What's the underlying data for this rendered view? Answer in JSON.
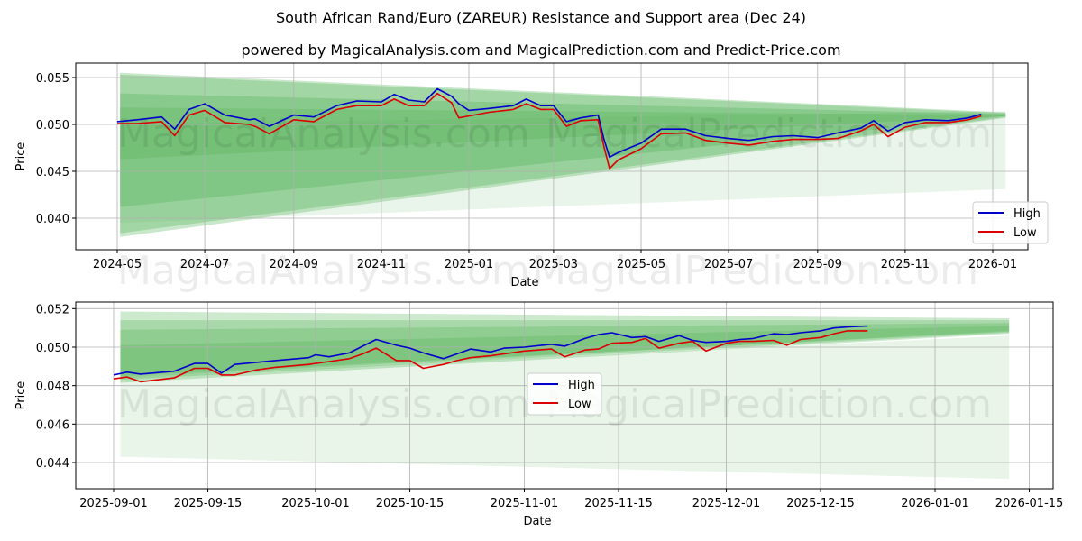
{
  "header": {
    "title": "South African Rand/Euro (ZAREUR) Resistance and Support area (Dec 24)",
    "subtitle": "powered by MagicalAnalysis.com and MagicalPrediction.com and Predict-Price.com"
  },
  "watermarks": [
    "MagicalAnalysis.com",
    "MagicalPrediction.com"
  ],
  "colors": {
    "high": "#0000cc",
    "low": "#dd0000",
    "band": "#4caf50"
  },
  "chart_data": [
    {
      "type": "line",
      "title": "South African Rand/Euro (ZAREUR) Resistance and Support area (Dec 24)",
      "xlabel": "Date",
      "ylabel": "Price",
      "ylim": [
        0.0366,
        0.0565
      ],
      "yticks": [
        "0.040",
        "0.045",
        "0.050",
        "0.055"
      ],
      "xticks": [
        "2024-05",
        "2024-07",
        "2024-09",
        "2024-11",
        "2025-01",
        "2025-03",
        "2025-05",
        "2025-07",
        "2025-09",
        "2025-11",
        "2026-01"
      ],
      "grid": true,
      "legend": {
        "position": "lower right",
        "entries": [
          "High",
          "Low"
        ]
      },
      "x": [
        "2024-05-01",
        "2024-05-15",
        "2024-06-01",
        "2024-06-10",
        "2024-06-20",
        "2024-07-01",
        "2024-07-15",
        "2024-08-01",
        "2024-08-05",
        "2024-08-15",
        "2024-09-01",
        "2024-09-15",
        "2024-10-01",
        "2024-10-15",
        "2024-11-01",
        "2024-11-10",
        "2024-11-20",
        "2024-12-01",
        "2024-12-10",
        "2024-12-20",
        "2024-12-25",
        "2025-01-01",
        "2025-01-15",
        "2025-02-01",
        "2025-02-10",
        "2025-02-20",
        "2025-03-01",
        "2025-03-10",
        "2025-03-20",
        "2025-04-01",
        "2025-04-05",
        "2025-04-09",
        "2025-04-15",
        "2025-05-01",
        "2025-05-15",
        "2025-06-01",
        "2025-06-15",
        "2025-07-01",
        "2025-07-15",
        "2025-08-01",
        "2025-08-15",
        "2025-09-01",
        "2025-09-15",
        "2025-10-01",
        "2025-10-10",
        "2025-10-20",
        "2025-11-01",
        "2025-11-15",
        "2025-12-01",
        "2025-12-15",
        "2025-12-24"
      ],
      "series": [
        {
          "name": "High",
          "color": "#0000cc",
          "values": [
            0.0503,
            0.0505,
            0.0508,
            0.0495,
            0.0516,
            0.0522,
            0.051,
            0.0505,
            0.0506,
            0.0498,
            0.051,
            0.0508,
            0.052,
            0.0525,
            0.0524,
            0.0532,
            0.0526,
            0.0524,
            0.0538,
            0.053,
            0.0522,
            0.0515,
            0.0517,
            0.052,
            0.0527,
            0.052,
            0.052,
            0.0503,
            0.0507,
            0.051,
            0.0485,
            0.0465,
            0.047,
            0.048,
            0.0495,
            0.0495,
            0.0488,
            0.0485,
            0.0483,
            0.0487,
            0.0488,
            0.0486,
            0.0491,
            0.0496,
            0.0504,
            0.0493,
            0.0502,
            0.0505,
            0.0504,
            0.0507,
            0.0511
          ]
        },
        {
          "name": "Low",
          "color": "#dd0000",
          "values": [
            0.0501,
            0.0501,
            0.0503,
            0.0488,
            0.051,
            0.0515,
            0.0502,
            0.05,
            0.0498,
            0.049,
            0.0505,
            0.0503,
            0.0516,
            0.052,
            0.052,
            0.0527,
            0.052,
            0.052,
            0.0533,
            0.0523,
            0.0507,
            0.0509,
            0.0513,
            0.0516,
            0.0522,
            0.0516,
            0.0516,
            0.0498,
            0.0504,
            0.0505,
            0.0477,
            0.0453,
            0.0462,
            0.0474,
            0.049,
            0.0491,
            0.0483,
            0.048,
            0.0478,
            0.0482,
            0.0484,
            0.0484,
            0.0485,
            0.0493,
            0.05,
            0.0487,
            0.0497,
            0.0502,
            0.0502,
            0.0505,
            0.0509
          ]
        }
      ]
    },
    {
      "type": "line",
      "title": "",
      "xlabel": "Date",
      "ylabel": "Price",
      "ylim": [
        0.0427,
        0.0523
      ],
      "yticks": [
        "0.044",
        "0.046",
        "0.048",
        "0.050",
        "0.052"
      ],
      "xticks": [
        "2025-09-01",
        "2025-09-15",
        "2025-10-01",
        "2025-10-15",
        "2025-11-01",
        "2025-11-15",
        "2025-12-01",
        "2025-12-15",
        "2026-01-01",
        "2026-01-15"
      ],
      "grid": true,
      "legend": {
        "position": "center",
        "entries": [
          "High",
          "Low"
        ]
      },
      "x": [
        "2025-09-01",
        "2025-09-03",
        "2025-09-05",
        "2025-09-10",
        "2025-09-13",
        "2025-09-15",
        "2025-09-17",
        "2025-09-19",
        "2025-09-22",
        "2025-09-25",
        "2025-09-30",
        "2025-10-01",
        "2025-10-03",
        "2025-10-06",
        "2025-10-08",
        "2025-10-10",
        "2025-10-13",
        "2025-10-15",
        "2025-10-17",
        "2025-10-20",
        "2025-10-22",
        "2025-10-24",
        "2025-10-27",
        "2025-10-29",
        "2025-11-01",
        "2025-11-05",
        "2025-11-07",
        "2025-11-10",
        "2025-11-12",
        "2025-11-14",
        "2025-11-17",
        "2025-11-19",
        "2025-11-21",
        "2025-11-24",
        "2025-11-26",
        "2025-11-28",
        "2025-12-01",
        "2025-12-03",
        "2025-12-05",
        "2025-12-08",
        "2025-12-10",
        "2025-12-12",
        "2025-12-15",
        "2025-12-17",
        "2025-12-19",
        "2025-12-22"
      ],
      "series": [
        {
          "name": "High",
          "color": "#0000cc",
          "values": [
            0.04855,
            0.0487,
            0.0486,
            0.04875,
            0.04915,
            0.04915,
            0.04865,
            0.0491,
            0.0492,
            0.0493,
            0.04945,
            0.0496,
            0.0495,
            0.0497,
            0.05005,
            0.0504,
            0.0501,
            0.04995,
            0.0497,
            0.0494,
            0.04965,
            0.0499,
            0.04975,
            0.04995,
            0.05,
            0.05015,
            0.05005,
            0.05045,
            0.05065,
            0.05075,
            0.0505,
            0.05055,
            0.0503,
            0.0506,
            0.05035,
            0.05025,
            0.0503,
            0.0504,
            0.05045,
            0.0507,
            0.05065,
            0.05075,
            0.05085,
            0.051,
            0.05105,
            0.0511
          ]
        },
        {
          "name": "Low",
          "color": "#dd0000",
          "values": [
            0.04835,
            0.04845,
            0.0482,
            0.0484,
            0.0489,
            0.0489,
            0.04855,
            0.04855,
            0.0488,
            0.04895,
            0.0491,
            0.04915,
            0.04925,
            0.0494,
            0.04965,
            0.04995,
            0.0493,
            0.0493,
            0.0489,
            0.0491,
            0.0493,
            0.04945,
            0.04955,
            0.04965,
            0.0498,
            0.0499,
            0.0495,
            0.04985,
            0.0499,
            0.0502,
            0.05025,
            0.05045,
            0.04995,
            0.0502,
            0.0503,
            0.0498,
            0.0502,
            0.0503,
            0.0503,
            0.05035,
            0.0501,
            0.0504,
            0.0505,
            0.0507,
            0.05085,
            0.05085
          ]
        }
      ]
    }
  ]
}
